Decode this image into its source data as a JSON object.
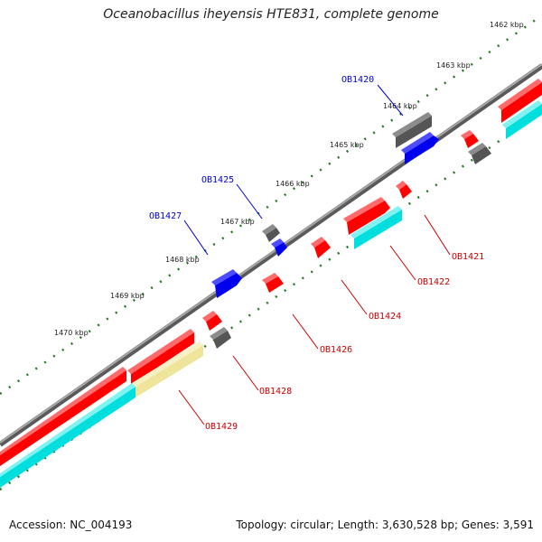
{
  "title": "Oceanobacillus iheyensis HTE831, complete genome",
  "footer": {
    "accession": "Accession: NC_004193",
    "summary": "Topology: circular; Length: 3,630,528 bp; Genes: 3,591"
  },
  "colors": {
    "backbone": "#8a8a8a",
    "forward_cds": "#ff0000",
    "reverse_cds": "#0000ff",
    "gene": "#777777",
    "cyan_feature": "#00dede",
    "khaki_feature": "#efe59a",
    "tick": "#1f7a1f",
    "label_forward": "#0000cc",
    "label_reverse": "#cc0000"
  },
  "scale_labels": [
    "1462 kbp",
    "1463 kbp",
    "1464 kbp",
    "1465 kbp",
    "1466 kbp",
    "1467 kbp",
    "1468 kbp",
    "1469 kbp",
    "1470 kbp"
  ],
  "forward_labels": [
    "OB1420",
    "OB1425",
    "OB1427"
  ],
  "reverse_labels": [
    "OB1421",
    "OB1422",
    "OB1424",
    "OB1426",
    "OB1428",
    "OB1429"
  ]
}
